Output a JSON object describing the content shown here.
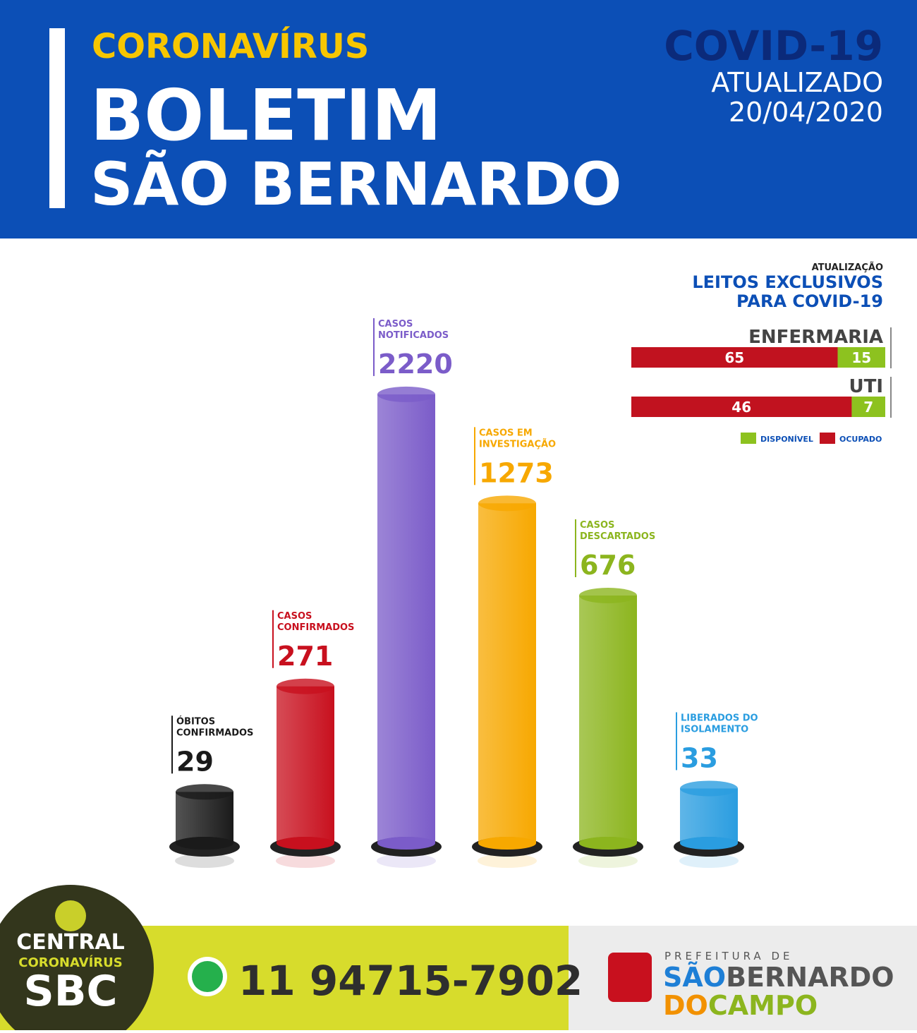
{
  "header": {
    "kicker": "CORONAVÍRUS",
    "title_line1": "BOLETIM",
    "title_line2": "SÃO BERNARDO",
    "badge": "COVID-19",
    "updated_label": "ATUALIZADO",
    "date": "20/04/2020"
  },
  "chart_data": {
    "type": "bar",
    "categories": [
      [
        "ÓBITOS",
        "CONFIRMADOS"
      ],
      [
        "CASOS",
        "CONFIRMADOS"
      ],
      [
        "CASOS",
        "NOTIFICADOS"
      ],
      [
        "CASOS EM",
        "INVESTIGAÇÃO"
      ],
      [
        "CASOS",
        "DESCARTADOS"
      ],
      [
        "LIBERADOS DO",
        "ISOLAMENTO"
      ]
    ],
    "values": [
      29,
      271,
      2220,
      1273,
      676,
      33
    ],
    "colors": [
      "#1a1a1a",
      "#c8101e",
      "#7b5cc9",
      "#f7a800",
      "#8cb51e",
      "#2a9de0"
    ]
  },
  "beds": {
    "label": "ATUALIZAÇÃO",
    "title": [
      "LEITOS EXCLUSIVOS",
      "PARA COVID-19"
    ],
    "rows": [
      {
        "name": "ENFERMARIA",
        "occupied": 65,
        "available": 15
      },
      {
        "name": "UTI",
        "occupied": 46,
        "available": 7
      }
    ],
    "legend": [
      {
        "name": "DISPONÍVEL",
        "color": "#8dc21f"
      },
      {
        "name": "OCUPADO",
        "color": "#c1121f"
      }
    ]
  },
  "footer": {
    "logo": [
      "CENTRAL",
      "CORONAVÍRUS",
      "SBC"
    ],
    "phone": "11 94715-7902",
    "prefix": "PREFEITURA DE",
    "city": [
      "SÃO",
      "BERNARDO",
      "DO",
      "CAMPO"
    ]
  }
}
